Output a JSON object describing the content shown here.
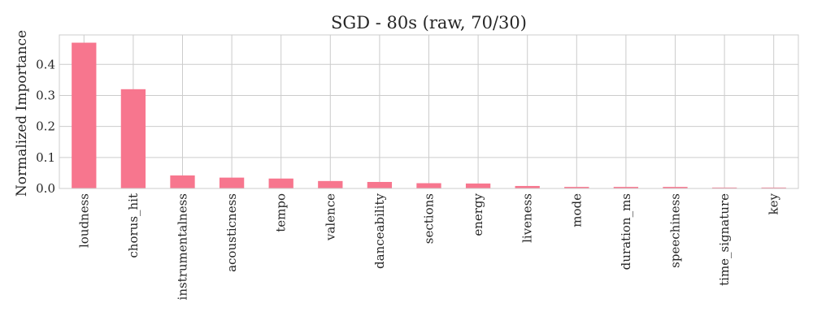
{
  "chart_data": {
    "type": "bar",
    "title": "SGD - 80s (raw, 70/30)",
    "xlabel": "",
    "ylabel": "Normalized Importance",
    "categories": [
      "loudness",
      "chorus_hit",
      "instrumentalness",
      "acousticness",
      "tempo",
      "valence",
      "danceability",
      "sections",
      "energy",
      "liveness",
      "mode",
      "duration_ms",
      "speechiness",
      "time_signature",
      "key"
    ],
    "values": [
      0.47,
      0.32,
      0.042,
      0.035,
      0.032,
      0.024,
      0.021,
      0.017,
      0.016,
      0.008,
      0.005,
      0.005,
      0.005,
      0.003,
      0.003
    ],
    "ylim": [
      0,
      0.495
    ],
    "yticks": [
      0.0,
      0.1,
      0.2,
      0.3,
      0.4
    ],
    "ytick_labels": [
      "0.0",
      "0.1",
      "0.2",
      "0.3",
      "0.4"
    ],
    "grid": true,
    "bar_color": "#f7768e",
    "grid_color": "#cccccc"
  }
}
